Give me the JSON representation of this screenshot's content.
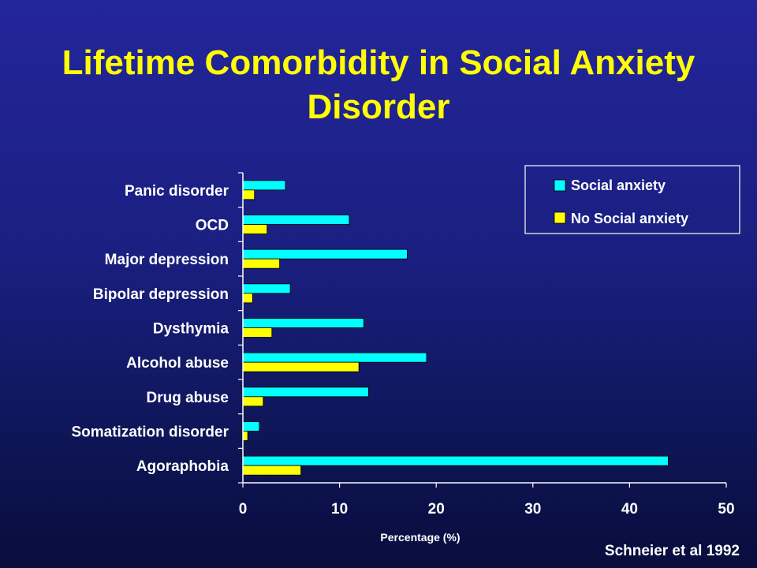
{
  "chart_data": {
    "type": "bar",
    "orientation": "horizontal",
    "title": "Lifetime Comorbidity in Social Anxiety Disorder",
    "title_lines": [
      "Lifetime Comorbidity in Social Anxiety",
      "Disorder"
    ],
    "categories": [
      "Panic disorder",
      "OCD",
      "Major depression",
      "Bipolar depression",
      "Dysthymia",
      "Alcohol abuse",
      "Drug abuse",
      "Somatization disorder",
      "Agoraphobia"
    ],
    "series": [
      {
        "name": "Social anxiety",
        "color": "#00ffff",
        "values": [
          4.4,
          11,
          17,
          4.9,
          12.5,
          19,
          13,
          1.7,
          44
        ]
      },
      {
        "name": "No Social anxiety",
        "color": "#ffff00",
        "values": [
          1.2,
          2.5,
          3.8,
          1.0,
          3.0,
          12,
          2.1,
          0.5,
          6
        ]
      }
    ],
    "xlabel": "Percentage (%)",
    "xlim": [
      0,
      50
    ],
    "xticks": [
      "0",
      "10",
      "20",
      "30",
      "40",
      "50"
    ],
    "grid": false,
    "legend_position": "top-right"
  },
  "source": "Schneier et al 1992"
}
